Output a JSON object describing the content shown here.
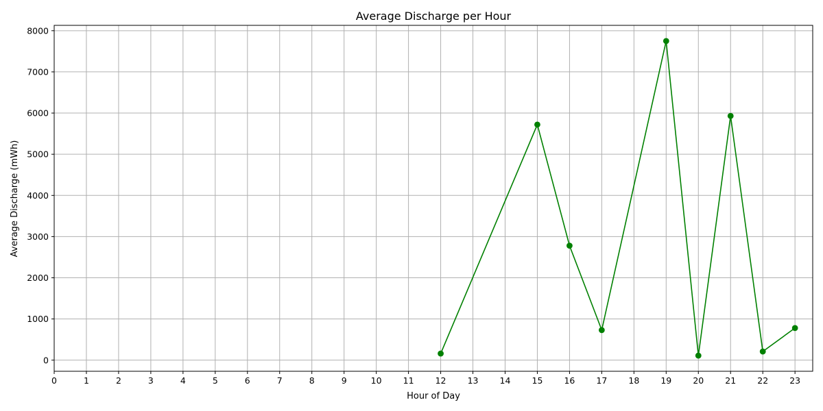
{
  "chart_data": {
    "type": "line",
    "title": "Average Discharge per Hour",
    "xlabel": "Hour of Day",
    "ylabel": "Average Discharge (mWh)",
    "xlim": [
      0,
      23.55
    ],
    "ylim": [
      -270,
      8130
    ],
    "x_ticks": [
      0,
      1,
      2,
      3,
      4,
      5,
      6,
      7,
      8,
      9,
      10,
      11,
      12,
      13,
      14,
      15,
      16,
      17,
      18,
      19,
      20,
      21,
      22,
      23
    ],
    "y_ticks": [
      0,
      1000,
      2000,
      3000,
      4000,
      5000,
      6000,
      7000,
      8000
    ],
    "grid": true,
    "series": [
      {
        "name": "Average Discharge",
        "color": "#008000",
        "marker": "circle",
        "x": [
          12,
          15,
          16,
          17,
          19,
          20,
          21,
          22,
          23
        ],
        "values": [
          160,
          5720,
          2780,
          730,
          7750,
          110,
          5930,
          210,
          780
        ]
      }
    ]
  }
}
